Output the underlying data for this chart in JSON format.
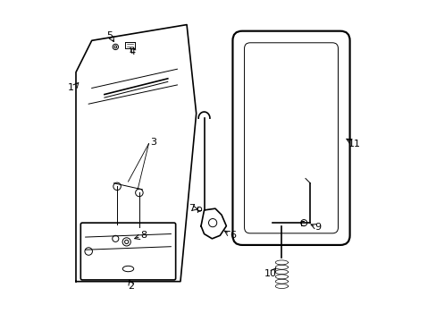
{
  "bg_color": "#ffffff",
  "line_color": "#000000",
  "line_width": 1.2,
  "thin_line": 0.7,
  "annotation_fontsize": 8
}
